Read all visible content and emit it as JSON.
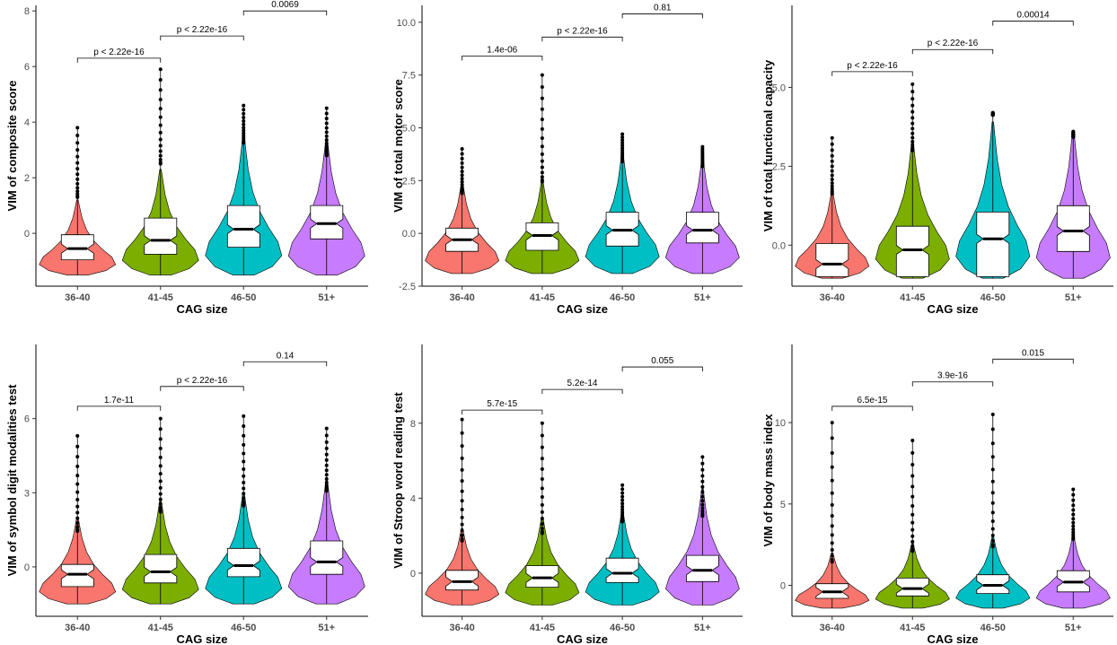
{
  "chart_data": [
    {
      "type": "violin",
      "ylabel": "VIM of composite score",
      "xlabel": "CAG size",
      "categories": [
        "36-40",
        "41-45",
        "46-50",
        "51+"
      ],
      "ylim": [
        -1.9,
        8.2
      ],
      "yticks": [
        0,
        2,
        4,
        6,
        8
      ],
      "violins": [
        {
          "min": -1.5,
          "max": 1.2,
          "upper_max": 3.8,
          "q1": -0.95,
          "median": -0.55,
          "q3": -0.05
        },
        {
          "min": -1.5,
          "max": 2.3,
          "upper_max": 5.9,
          "q1": -0.75,
          "median": -0.25,
          "q3": 0.55
        },
        {
          "min": -1.5,
          "max": 3.5,
          "upper_max": 4.6,
          "q1": -0.5,
          "median": 0.15,
          "q3": 1.0
        },
        {
          "min": -1.5,
          "max": 3.4,
          "upper_max": 4.5,
          "q1": -0.2,
          "median": 0.35,
          "q3": 1.0
        }
      ],
      "comparisons": [
        {
          "from": 0,
          "to": 1,
          "y": 6.3,
          "label": "p < 2.22e-16"
        },
        {
          "from": 1,
          "to": 2,
          "y": 7.1,
          "label": "p < 2.22e-16"
        },
        {
          "from": 2,
          "to": 3,
          "y": 8.0,
          "label": "0.0069"
        }
      ]
    },
    {
      "type": "violin",
      "ylabel": "VIM of total motor score",
      "xlabel": "CAG size",
      "categories": [
        "36-40",
        "41-45",
        "46-50",
        "51+"
      ],
      "ylim": [
        -2.5,
        10.8
      ],
      "yticks": [
        -2.5,
        0.0,
        2.5,
        5.0,
        7.5,
        10.0
      ],
      "ytick_labels": [
        "-2.5",
        "0.0",
        "2.5",
        "5.0",
        "7.5",
        "10.0"
      ],
      "violins": [
        {
          "min": -1.9,
          "max": 2.4,
          "upper_max": 4.0,
          "q1": -0.85,
          "median": -0.3,
          "q3": 0.25
        },
        {
          "min": -1.9,
          "max": 2.5,
          "upper_max": 7.5,
          "q1": -0.8,
          "median": -0.1,
          "q3": 0.5
        },
        {
          "min": -1.9,
          "max": 3.8,
          "upper_max": 4.7,
          "q1": -0.6,
          "median": 0.15,
          "q3": 1.0
        },
        {
          "min": -1.9,
          "max": 3.5,
          "upper_max": 4.1,
          "q1": -0.45,
          "median": 0.15,
          "q3": 1.0
        }
      ],
      "comparisons": [
        {
          "from": 0,
          "to": 1,
          "y": 8.4,
          "label": "1.4e-06"
        },
        {
          "from": 1,
          "to": 2,
          "y": 9.3,
          "label": "p < 2.22e-16"
        },
        {
          "from": 2,
          "to": 3,
          "y": 10.4,
          "label": "0.81"
        }
      ]
    },
    {
      "type": "violin",
      "ylabel": "VIM of total functional capacity",
      "xlabel": "CAG size",
      "categories": [
        "36-40",
        "41-45",
        "46-50",
        "51+"
      ],
      "ylim": [
        -1.3,
        7.6
      ],
      "yticks": [
        0.0,
        2.5,
        5.0
      ],
      "ytick_labels": [
        "0.0",
        "2.5",
        "5.0"
      ],
      "violins": [
        {
          "min": -1.05,
          "max": 1.7,
          "upper_max": 3.4,
          "q1": -1.0,
          "median": -0.6,
          "q3": 0.05
        },
        {
          "min": -1.05,
          "max": 3.3,
          "upper_max": 5.1,
          "q1": -1.0,
          "median": -0.15,
          "q3": 0.6
        },
        {
          "min": -1.05,
          "max": 3.9,
          "upper_max": 4.2,
          "q1": -1.0,
          "median": 0.2,
          "q3": 1.05
        },
        {
          "min": -1.05,
          "max": 3.6,
          "upper_max": 3.6,
          "q1": -0.2,
          "median": 0.45,
          "q3": 1.25
        }
      ],
      "comparisons": [
        {
          "from": 0,
          "to": 1,
          "y": 5.5,
          "label": "p < 2.22e-16"
        },
        {
          "from": 1,
          "to": 2,
          "y": 6.2,
          "label": "p < 2.22e-16"
        },
        {
          "from": 2,
          "to": 3,
          "y": 7.1,
          "label": "0.00014"
        }
      ]
    },
    {
      "type": "violin",
      "ylabel": "VIM of symbol digit modalities test",
      "xlabel": "CAG size",
      "categories": [
        "36-40",
        "41-45",
        "46-50",
        "51+"
      ],
      "ylim": [
        -2.0,
        9.0
      ],
      "yticks": [
        0,
        3,
        6
      ],
      "violins": [
        {
          "min": -1.5,
          "max": 2.0,
          "upper_max": 5.3,
          "q1": -0.8,
          "median": -0.3,
          "q3": 0.1
        },
        {
          "min": -1.5,
          "max": 2.7,
          "upper_max": 6.0,
          "q1": -0.65,
          "median": -0.2,
          "q3": 0.5
        },
        {
          "min": -1.5,
          "max": 3.0,
          "upper_max": 6.1,
          "q1": -0.4,
          "median": 0.05,
          "q3": 0.75
        },
        {
          "min": -1.5,
          "max": 3.5,
          "upper_max": 5.6,
          "q1": -0.3,
          "median": 0.2,
          "q3": 1.05
        }
      ],
      "comparisons": [
        {
          "from": 0,
          "to": 1,
          "y": 6.5,
          "label": "1.7e-11"
        },
        {
          "from": 1,
          "to": 2,
          "y": 7.3,
          "label": "p < 2.22e-16"
        },
        {
          "from": 2,
          "to": 3,
          "y": 8.3,
          "label": "0.14"
        }
      ]
    },
    {
      "type": "violin",
      "ylabel": "VIM of Stroop word reading test",
      "xlabel": "CAG size",
      "categories": [
        "36-40",
        "41-45",
        "46-50",
        "51+"
      ],
      "ylim": [
        -2.3,
        12.2
      ],
      "yticks": [
        0,
        4,
        8
      ],
      "violins": [
        {
          "min": -1.7,
          "max": 2.4,
          "upper_max": 8.2,
          "q1": -0.9,
          "median": -0.45,
          "q3": 0.15
        },
        {
          "min": -1.7,
          "max": 3.0,
          "upper_max": 8.0,
          "q1": -0.75,
          "median": -0.25,
          "q3": 0.4
        },
        {
          "min": -1.7,
          "max": 3.3,
          "upper_max": 4.7,
          "q1": -0.5,
          "median": 0.0,
          "q3": 0.8
        },
        {
          "min": -1.7,
          "max": 4.5,
          "upper_max": 6.2,
          "q1": -0.45,
          "median": 0.15,
          "q3": 0.95
        }
      ],
      "comparisons": [
        {
          "from": 0,
          "to": 1,
          "y": 8.7,
          "label": "5.7e-15"
        },
        {
          "from": 1,
          "to": 2,
          "y": 9.8,
          "label": "5.2e-14"
        },
        {
          "from": 2,
          "to": 3,
          "y": 11.0,
          "label": "0.055"
        }
      ]
    },
    {
      "type": "violin",
      "ylabel": "VIM of body mass index",
      "xlabel": "CAG size",
      "categories": [
        "36-40",
        "41-45",
        "46-50",
        "51+"
      ],
      "ylim": [
        -1.9,
        14.8
      ],
      "yticks": [
        0,
        5,
        10
      ],
      "violins": [
        {
          "min": -1.4,
          "max": 2.0,
          "upper_max": 10.0,
          "q1": -0.8,
          "median": -0.4,
          "q3": 0.1
        },
        {
          "min": -1.4,
          "max": 2.6,
          "upper_max": 8.9,
          "q1": -0.65,
          "median": -0.2,
          "q3": 0.45
        },
        {
          "min": -1.4,
          "max": 3.0,
          "upper_max": 10.5,
          "q1": -0.5,
          "median": 0.0,
          "q3": 0.65
        },
        {
          "min": -1.4,
          "max": 3.0,
          "upper_max": 5.9,
          "q1": -0.4,
          "median": 0.2,
          "q3": 0.9
        }
      ],
      "comparisons": [
        {
          "from": 0,
          "to": 1,
          "y": 11.0,
          "label": "6.5e-15"
        },
        {
          "from": 1,
          "to": 2,
          "y": 12.5,
          "label": "3.9e-16"
        },
        {
          "from": 2,
          "to": 3,
          "y": 13.9,
          "label": "0.015"
        }
      ]
    }
  ],
  "colors": [
    "#F8766D",
    "#7CAE00",
    "#00BFC4",
    "#C77CFF"
  ]
}
